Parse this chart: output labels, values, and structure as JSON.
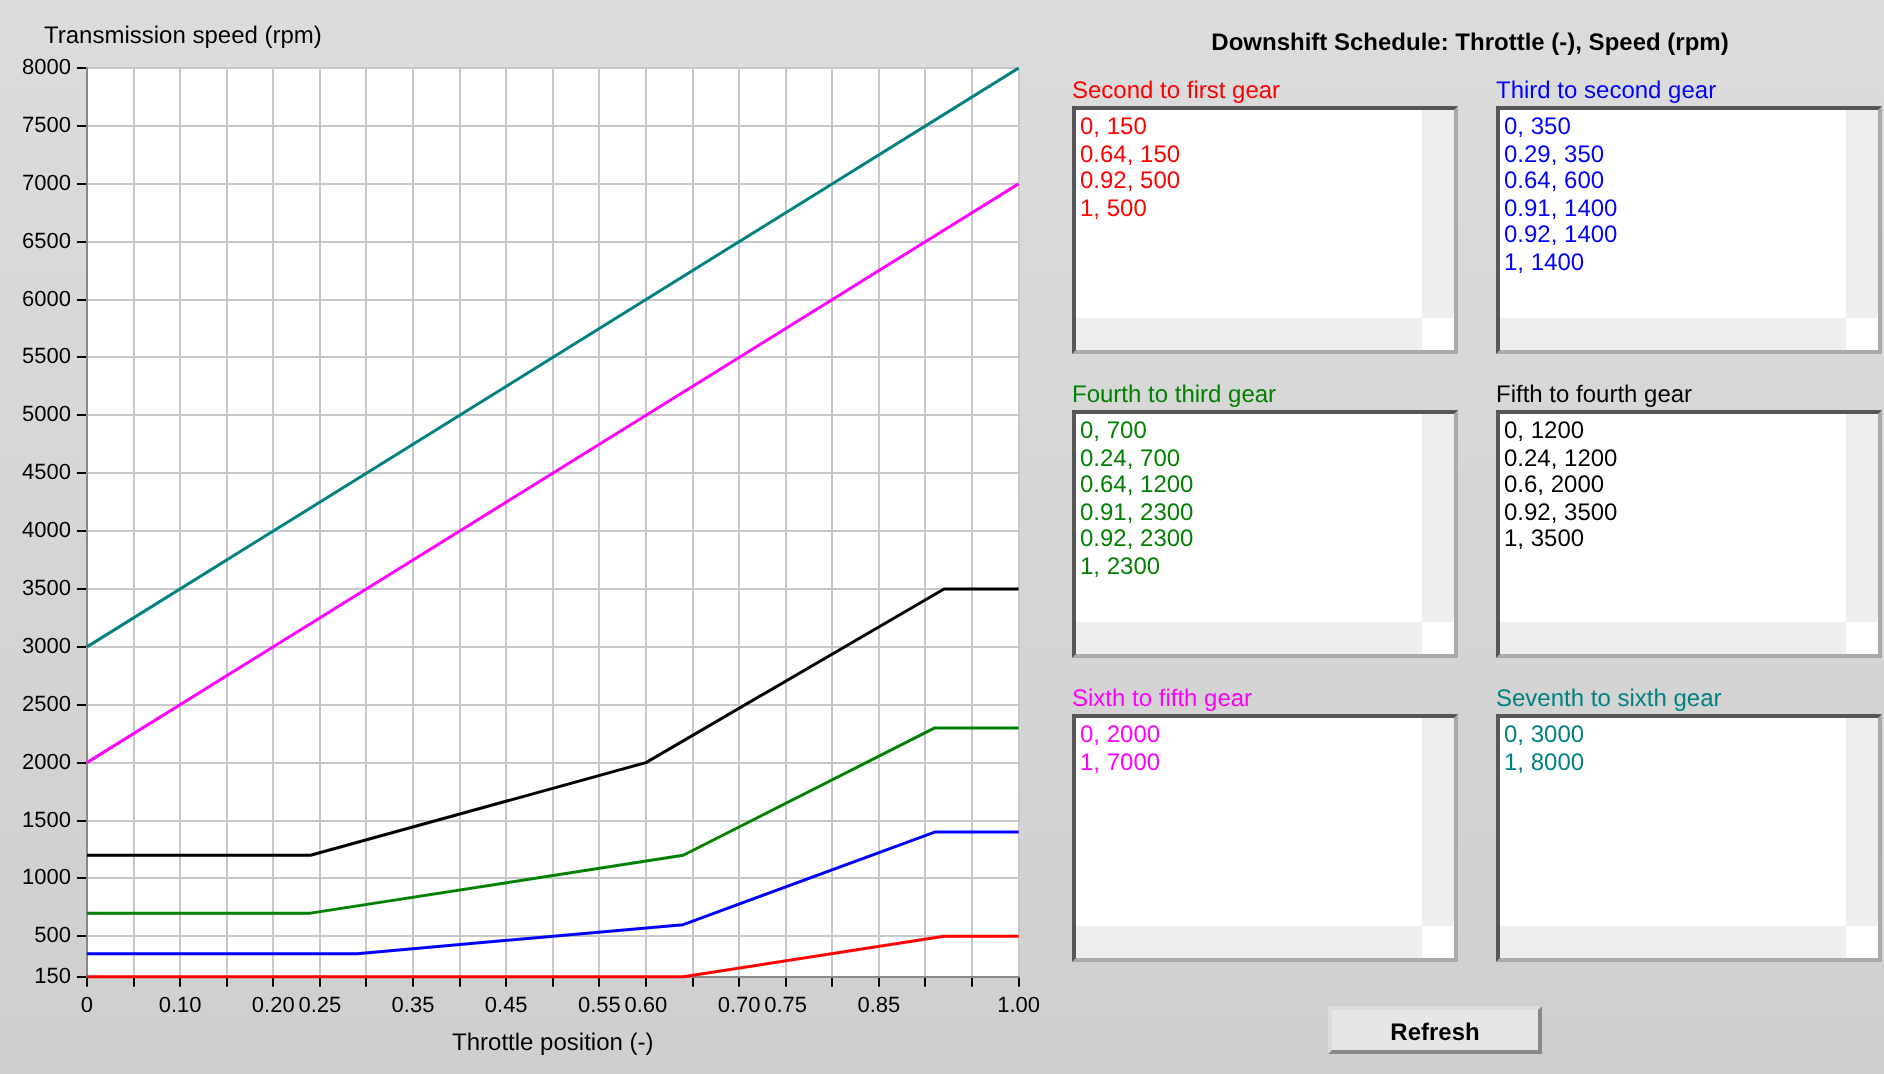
{
  "chart_data": {
    "type": "line",
    "title": "Downshift Schedule: Throttle (-), Speed (rpm)",
    "xlabel": "Throttle position (-)",
    "ylabel": "Transmission speed (rpm)",
    "xlim": [
      0,
      1
    ],
    "ylim": [
      150,
      8000
    ],
    "xticks": [
      0,
      {
        "value": 0.05,
        "label": null
      },
      {
        "value": 0.1,
        "label": "0.10"
      },
      {
        "value": 0.15,
        "label": null
      },
      {
        "value": 0.2,
        "label": "0.20"
      },
      {
        "value": 0.25,
        "label": "0.25"
      },
      {
        "value": 0.3,
        "label": null
      },
      {
        "value": 0.35,
        "label": "0.35"
      },
      {
        "value": 0.4,
        "label": null
      },
      {
        "value": 0.45,
        "label": "0.45"
      },
      {
        "value": 0.5,
        "label": null
      },
      {
        "value": 0.55,
        "label": "0.55"
      },
      {
        "value": 0.6,
        "label": "0.60"
      },
      {
        "value": 0.65,
        "label": null
      },
      {
        "value": 0.7,
        "label": "0.70"
      },
      {
        "value": 0.75,
        "label": "0.75"
      },
      {
        "value": 0.8,
        "label": null
      },
      {
        "value": 0.85,
        "label": "0.85"
      },
      {
        "value": 0.9,
        "label": null
      },
      {
        "value": 0.95,
        "label": null
      },
      {
        "value": 1,
        "label": "1.00"
      }
    ],
    "yticks": [
      150,
      500,
      1000,
      1500,
      2000,
      2500,
      3000,
      3500,
      4000,
      4500,
      5000,
      5500,
      6000,
      6500,
      7000,
      7500,
      8000
    ],
    "grid": true,
    "legend": false,
    "marker": "none",
    "line_style": "solid",
    "series": [
      {
        "name": "Second to first gear",
        "color": "#ff0000",
        "x": [
          0,
          0.64,
          0.92,
          1
        ],
        "values": [
          150,
          150,
          500,
          500
        ]
      },
      {
        "name": "Third to second gear",
        "color": "#0000ff",
        "x": [
          0,
          0.29,
          0.64,
          0.91,
          0.92,
          1
        ],
        "values": [
          350,
          350,
          600,
          1400,
          1400,
          1400
        ]
      },
      {
        "name": "Fourth to third gear",
        "color": "#008000",
        "x": [
          0,
          0.24,
          0.64,
          0.91,
          0.92,
          1
        ],
        "values": [
          700,
          700,
          1200,
          2300,
          2300,
          2300
        ]
      },
      {
        "name": "Fifth to fourth gear",
        "color": "#000000",
        "x": [
          0,
          0.24,
          0.6,
          0.92,
          1
        ],
        "values": [
          1200,
          1200,
          2000,
          3500,
          3500
        ]
      },
      {
        "name": "Sixth to fifth gear",
        "color": "#ff00ff",
        "x": [
          0,
          1
        ],
        "values": [
          2000,
          7000
        ]
      },
      {
        "name": "Seventh to sixth gear",
        "color": "#008080",
        "x": [
          0,
          1
        ],
        "values": [
          3000,
          8000
        ]
      }
    ],
    "annotations": [
      "0, 150",
      "0.64, 150",
      "0.92, 500",
      "1, 500",
      "0, 350",
      "0.29, 350",
      "0.64, 600",
      "0.91, 1400",
      "0.92, 1400",
      "1, 1400",
      "0, 700",
      "0.24, 700",
      "0.64, 1200",
      "0.91, 2300",
      "0.92, 2300",
      "1, 2300",
      "0, 1200",
      "0.24, 1200",
      "0.6, 2000",
      "0.92, 3500",
      "1, 3500",
      "0, 2000",
      "1, 7000",
      "0, 3000",
      "1, 8000",
      "Refresh"
    ]
  }
}
